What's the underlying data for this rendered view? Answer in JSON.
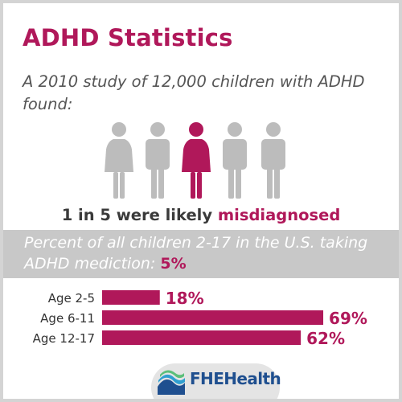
{
  "title": "ADHD Statistics",
  "intro": "A 2010 study of 12,000 children with ADHD found:",
  "people": {
    "figures": [
      "female",
      "male",
      "female",
      "male",
      "male"
    ],
    "highlighted_index": 2,
    "highlight_color": "#b0185a",
    "base_color": "#bcbcbc"
  },
  "result": {
    "prefix": "1 in 5 were likely",
    "accent": "misdiagnosed"
  },
  "band": {
    "text": "Percent of all children 2-17 in the U.S. taking ADHD mediction:",
    "value": "5%"
  },
  "chart_data": {
    "type": "bar",
    "orientation": "horizontal",
    "categories": [
      "Age 2-5",
      "Age 6-11",
      "Age 12-17"
    ],
    "values": [
      18,
      69,
      62
    ],
    "value_labels": [
      "18%",
      "69%",
      "62%"
    ],
    "xlim": [
      0,
      72
    ],
    "grid": false,
    "bar_color": "#b0185a",
    "title": "",
    "xlabel": "",
    "ylabel": ""
  },
  "logo": {
    "text": "FHEHealth",
    "icon": "fhe-health-wave-icon",
    "colors": [
      "#1f4f8f",
      "#2f9fd0",
      "#5bbf7a"
    ]
  }
}
